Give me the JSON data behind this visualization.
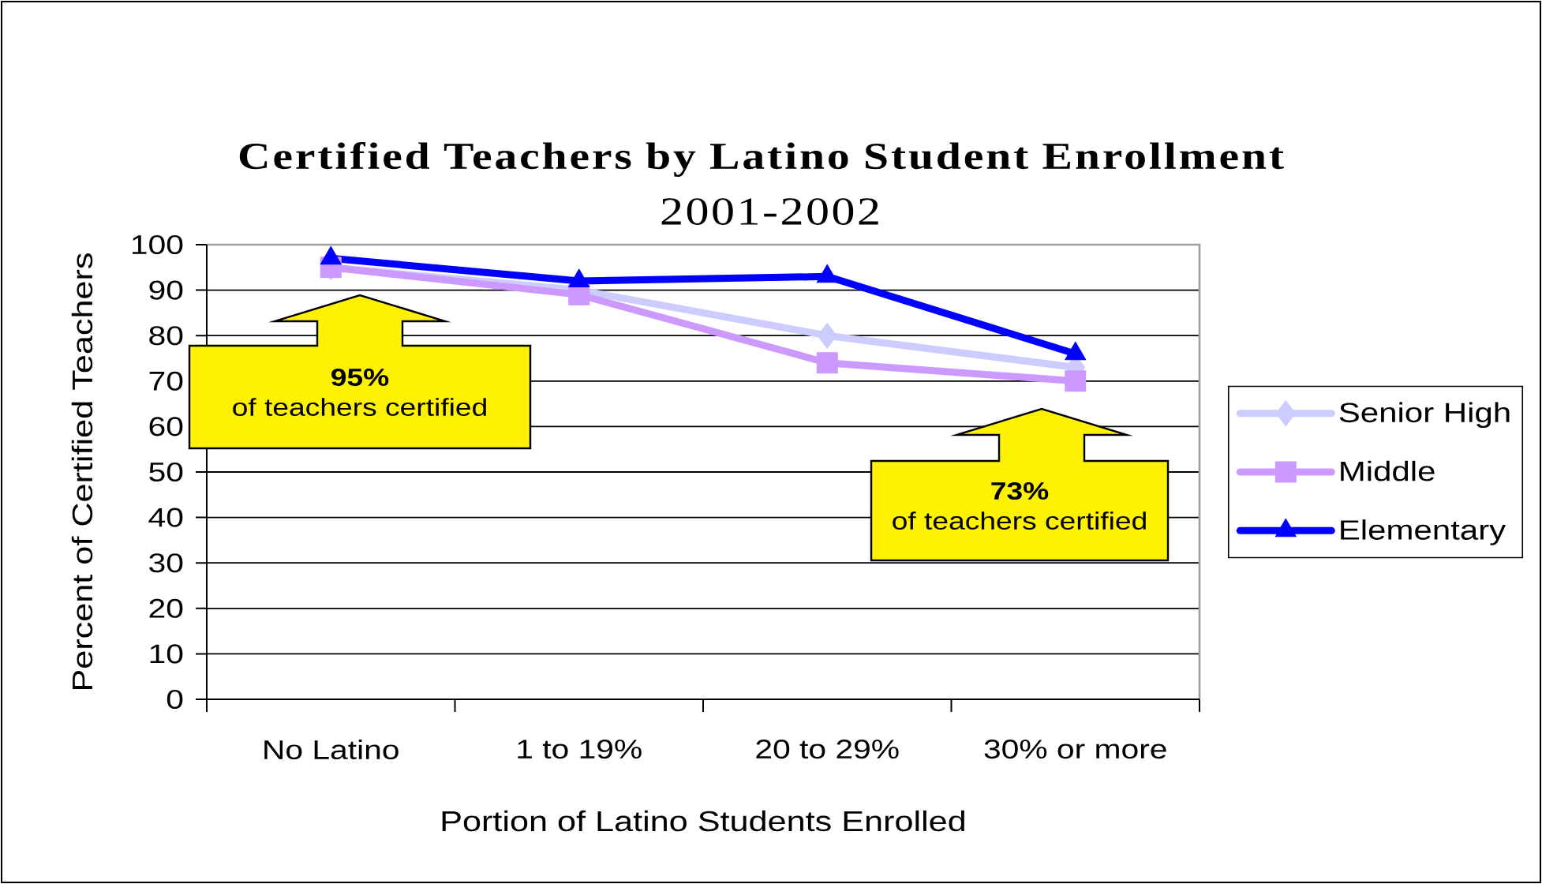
{
  "chart_data": {
    "type": "line",
    "title": "Certified Teachers by Latino Student Enrollment",
    "subtitle": "2001-2002",
    "xlabel": "Portion of Latino Students Enrolled",
    "ylabel": "Percent of Certified Teachers",
    "categories": [
      "No Latino",
      "1 to 19%",
      "20 to 29%",
      "30% or more"
    ],
    "series": [
      {
        "name": "Senior High",
        "color": "#ccccff",
        "marker": "diamond",
        "values": [
          95,
          90,
          80,
          73
        ]
      },
      {
        "name": "Middle",
        "color": "#cc99ff",
        "marker": "square",
        "values": [
          95,
          89,
          74,
          70
        ]
      },
      {
        "name": "Elementary",
        "color": "#0000ff",
        "marker": "triangle",
        "values": [
          97,
          92,
          93,
          76
        ]
      }
    ],
    "ylim": [
      0,
      100
    ],
    "yticks": [
      0,
      10,
      20,
      30,
      40,
      50,
      60,
      70,
      80,
      90,
      100
    ],
    "grid": "y",
    "legend": "right",
    "annotations": [
      "**95%** of teachers certified",
      "**73%** of teachers certified"
    ]
  }
}
